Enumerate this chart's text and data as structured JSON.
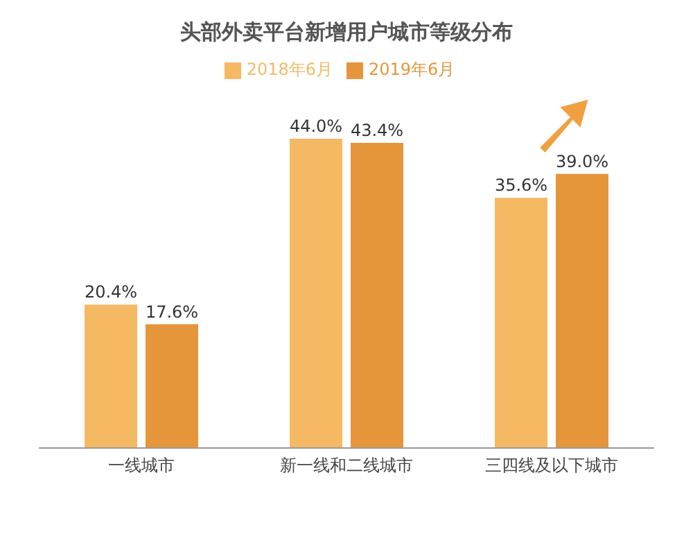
{
  "chart_data": {
    "type": "bar",
    "title": "头部外卖平台新增用户城市等级分布",
    "categories": [
      "一线城市",
      "新一线和二线城市",
      "三四线及以下城市"
    ],
    "series": [
      {
        "name": "2018年6月",
        "color": "#f5b964",
        "values": [
          20.4,
          44.0,
          35.6
        ],
        "value_labels": [
          "20.4%",
          "44.0%",
          "35.6%"
        ]
      },
      {
        "name": "2019年6月",
        "color": "#e5963a",
        "values": [
          17.6,
          43.4,
          39.0
        ],
        "value_labels": [
          "17.6%",
          "43.4%",
          "39.0%"
        ]
      }
    ],
    "legend": "top",
    "grid": false
  }
}
